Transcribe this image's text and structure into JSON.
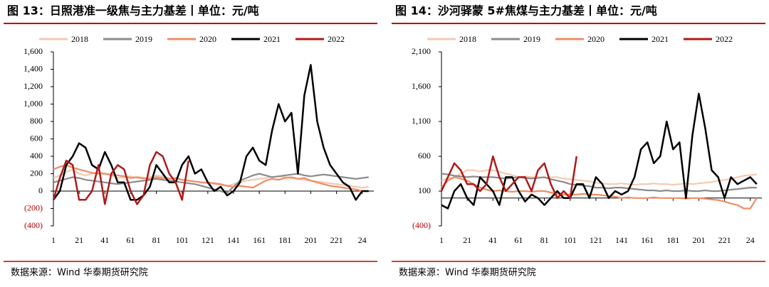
{
  "chart_data": [
    {
      "type": "line",
      "title": "图 13：日照港准一级焦与主力基差丨单位：元/吨",
      "source": "数据来源：Wind 华泰期货研究院",
      "x": [
        1,
        6,
        11,
        16,
        21,
        26,
        31,
        36,
        41,
        46,
        51,
        56,
        61,
        66,
        71,
        76,
        81,
        86,
        91,
        96,
        101,
        106,
        111,
        116,
        121,
        126,
        131,
        136,
        141,
        146,
        151,
        156,
        161,
        166,
        171,
        176,
        181,
        186,
        191,
        196,
        201,
        206,
        211,
        216,
        221,
        226,
        231,
        236,
        241,
        246
      ],
      "xlim": [
        1,
        250
      ],
      "xticks": [
        1,
        21,
        41,
        61,
        81,
        101,
        121,
        141,
        161,
        181,
        201,
        221,
        {
          "value": 241,
          "label": "24"
        }
      ],
      "ylim": [
        -400,
        1600
      ],
      "yticks": [
        {
          "value": -400,
          "label": "(400)"
        },
        {
          "value": -200,
          "label": "(200)"
        },
        0,
        200,
        400,
        600,
        800,
        {
          "value": 1000,
          "label": "1,000"
        },
        {
          "value": 1200,
          "label": "1,200"
        },
        {
          "value": 1400,
          "label": "1,400"
        },
        {
          "value": 1600,
          "label": "1,600"
        }
      ],
      "series": [
        {
          "name": "2018",
          "color": "#f6c9b0",
          "values": [
            150,
            180,
            220,
            250,
            200,
            180,
            200,
            220,
            200,
            180,
            150,
            160,
            170,
            150,
            140,
            160,
            180,
            170,
            150,
            140,
            130,
            120,
            110,
            100,
            90,
            80,
            70,
            60,
            80,
            100,
            120,
            130,
            140,
            150,
            160,
            170,
            160,
            150,
            140,
            130,
            120,
            110,
            100,
            90,
            80,
            70,
            60,
            50,
            40,
            50
          ]
        },
        {
          "name": "2019",
          "color": "#8c8c8c",
          "values": [
            100,
            120,
            140,
            160,
            150,
            130,
            120,
            110,
            100,
            90,
            80,
            90,
            100,
            110,
            120,
            130,
            140,
            130,
            120,
            110,
            100,
            90,
            80,
            60,
            40,
            20,
            0,
            -20,
            50,
            120,
            150,
            180,
            200,
            180,
            160,
            170,
            180,
            190,
            200,
            180,
            170,
            180,
            190,
            180,
            170,
            160,
            150,
            140,
            150,
            160
          ]
        },
        {
          "name": "2020",
          "color": "#ef8d66",
          "values": [
            250,
            280,
            300,
            270,
            250,
            230,
            210,
            200,
            200,
            190,
            180,
            170,
            150,
            160,
            150,
            140,
            160,
            150,
            140,
            150,
            130,
            120,
            110,
            100,
            100,
            90,
            80,
            60,
            50,
            60,
            50,
            40,
            80,
            120,
            140,
            130,
            150,
            160,
            140,
            150,
            120,
            100,
            80,
            60,
            50,
            40,
            30,
            20,
            0,
            0
          ]
        },
        {
          "name": "2021",
          "color": "#000000",
          "values": [
            -100,
            0,
            300,
            400,
            550,
            500,
            300,
            250,
            450,
            300,
            100,
            100,
            -100,
            -100,
            -50,
            50,
            300,
            200,
            100,
            100,
            300,
            400,
            200,
            250,
            100,
            0,
            50,
            -50,
            0,
            100,
            400,
            500,
            350,
            300,
            700,
            1000,
            800,
            900,
            200,
            1100,
            1450,
            800,
            500,
            300,
            200,
            100,
            50,
            -100,
            0,
            0
          ]
        },
        {
          "name": "2022",
          "color": "#b01a1a",
          "values": [
            -100,
            150,
            350,
            300,
            -100,
            -100,
            0,
            300,
            -150,
            200,
            300,
            250,
            0,
            -150,
            -50,
            300,
            450,
            400,
            200,
            100,
            -100,
            350,
            null,
            null,
            null,
            null,
            null,
            null,
            null,
            null,
            null,
            null,
            null,
            null,
            null,
            null,
            null,
            null,
            null,
            null,
            null,
            null,
            null,
            null,
            null,
            null,
            null,
            null,
            null,
            null
          ]
        }
      ]
    },
    {
      "type": "line",
      "title": "图 14：沙河驿蒙 5#焦煤与主力基差丨单位：元/吨",
      "source": "数据来源：Wind 华泰期货研究院",
      "x": [
        1,
        6,
        11,
        16,
        21,
        26,
        31,
        36,
        41,
        46,
        51,
        56,
        61,
        66,
        71,
        76,
        81,
        86,
        91,
        96,
        101,
        106,
        111,
        116,
        121,
        126,
        131,
        136,
        141,
        146,
        151,
        156,
        161,
        166,
        171,
        176,
        181,
        186,
        191,
        196,
        201,
        206,
        211,
        216,
        221,
        226,
        231,
        236,
        241,
        246
      ],
      "xlim": [
        1,
        250
      ],
      "xticks": [
        1,
        21,
        41,
        61,
        81,
        101,
        121,
        141,
        161,
        181,
        201,
        221,
        {
          "value": 241,
          "label": "24"
        }
      ],
      "ylim": [
        -400,
        2100
      ],
      "yticks": [
        {
          "value": -400,
          "label": "(400)"
        },
        100,
        600,
        {
          "value": 1100,
          "label": "1,100"
        },
        {
          "value": 1600,
          "label": "1,600"
        },
        {
          "value": 2100,
          "label": "2,100"
        }
      ],
      "series": [
        {
          "name": "2018",
          "color": "#f6c9b0",
          "values": [
            250,
            280,
            300,
            350,
            400,
            400,
            380,
            400,
            400,
            380,
            350,
            330,
            300,
            310,
            300,
            300,
            290,
            300,
            300,
            280,
            270,
            260,
            250,
            240,
            220,
            210,
            200,
            200,
            210,
            200,
            190,
            200,
            200,
            210,
            200,
            200,
            190,
            200,
            210,
            200,
            210,
            220,
            230,
            250,
            260,
            280,
            300,
            320,
            330,
            340
          ]
        },
        {
          "name": "2019",
          "color": "#8c8c8c",
          "values": [
            350,
            340,
            320,
            310,
            300,
            310,
            300,
            300,
            300,
            290,
            280,
            290,
            300,
            290,
            280,
            290,
            300,
            270,
            250,
            230,
            200,
            190,
            180,
            170,
            150,
            150,
            140,
            150,
            150,
            140,
            130,
            120,
            110,
            110,
            100,
            110,
            100,
            100,
            110,
            100,
            100,
            110,
            100,
            100,
            110,
            120,
            130,
            140,
            150,
            150
          ]
        },
        {
          "name": "2020",
          "color": "#ef8d66",
          "values": [
            150,
            250,
            300,
            280,
            250,
            200,
            150,
            120,
            100,
            110,
            100,
            90,
            100,
            100,
            90,
            100,
            100,
            80,
            60,
            50,
            50,
            50,
            60,
            50,
            50,
            40,
            30,
            20,
            0,
            10,
            0,
            0,
            0,
            10,
            0,
            0,
            0,
            0,
            -10,
            0,
            0,
            -10,
            -20,
            -30,
            -50,
            -80,
            -100,
            -150,
            -150,
            0
          ]
        },
        {
          "name": "2021",
          "color": "#000000",
          "values": [
            -100,
            -150,
            100,
            200,
            0,
            -100,
            300,
            200,
            100,
            -100,
            300,
            300,
            100,
            -50,
            50,
            0,
            -100,
            0,
            100,
            0,
            0,
            200,
            200,
            0,
            300,
            200,
            0,
            100,
            50,
            100,
            300,
            700,
            800,
            500,
            600,
            1100,
            700,
            800,
            0,
            900,
            1500,
            1000,
            400,
            300,
            0,
            300,
            200,
            250,
            300,
            200
          ]
        },
        {
          "name": "2022",
          "color": "#b01a1a",
          "values": [
            100,
            300,
            500,
            400,
            200,
            200,
            100,
            200,
            600,
            300,
            100,
            200,
            300,
            300,
            100,
            400,
            500,
            200,
            0,
            100,
            0,
            600,
            null,
            null,
            null,
            null,
            null,
            null,
            null,
            null,
            null,
            null,
            null,
            null,
            null,
            null,
            null,
            null,
            null,
            null,
            null,
            null,
            null,
            null,
            null,
            null,
            null,
            null,
            null,
            null
          ]
        }
      ]
    }
  ]
}
